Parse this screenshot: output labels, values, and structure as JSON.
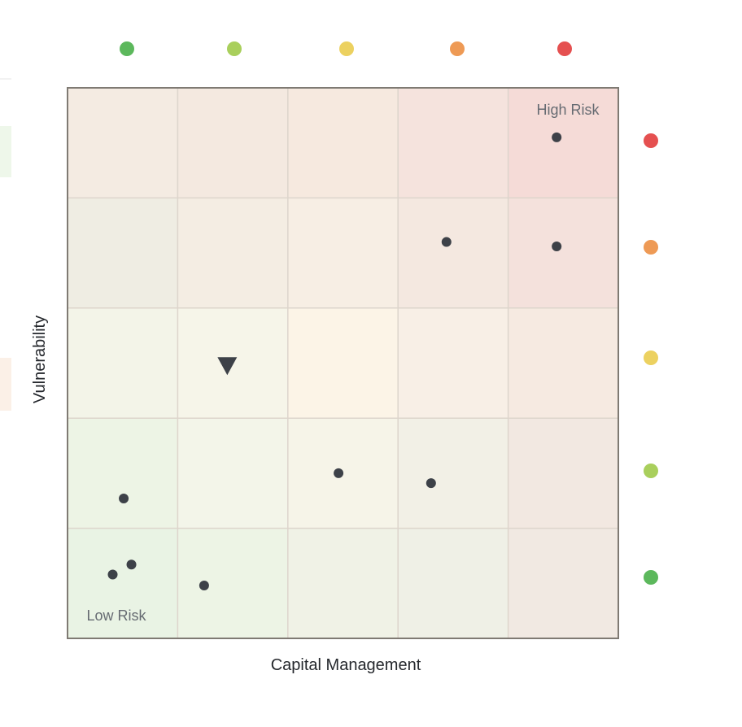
{
  "chart_data": {
    "type": "scatter",
    "title": "",
    "xlabel": "Capital Management",
    "ylabel": "Vulnerability",
    "xlim": [
      0,
      5
    ],
    "ylim": [
      0,
      5
    ],
    "grid": true,
    "columns": 5,
    "rows": 5,
    "corner_labels": {
      "top_right": "High Risk",
      "bottom_left": "Low Risk"
    },
    "column_indicators": [
      "#5cb85c",
      "#a9cf5c",
      "#ecd160",
      "#ee9a55",
      "#e55050"
    ],
    "row_indicators_top_to_bottom": [
      "#e55050",
      "#ee9a55",
      "#ecd160",
      "#a9cf5c",
      "#5cb85c"
    ],
    "points": [
      {
        "x": 4.44,
        "y": 4.55,
        "marker": "circle"
      },
      {
        "x": 3.44,
        "y": 3.6,
        "marker": "circle"
      },
      {
        "x": 4.44,
        "y": 3.56,
        "marker": "circle"
      },
      {
        "x": 1.45,
        "y": 2.48,
        "marker": "triangle-down"
      },
      {
        "x": 2.46,
        "y": 1.5,
        "marker": "circle"
      },
      {
        "x": 3.3,
        "y": 1.41,
        "marker": "circle"
      },
      {
        "x": 0.51,
        "y": 1.27,
        "marker": "circle"
      },
      {
        "x": 0.58,
        "y": 0.67,
        "marker": "circle"
      },
      {
        "x": 0.41,
        "y": 0.58,
        "marker": "circle"
      },
      {
        "x": 1.24,
        "y": 0.48,
        "marker": "circle"
      }
    ]
  },
  "colors": {
    "point": "#3d4148",
    "frame": "#7f7a73",
    "gridline": "#ddd5cc",
    "cells_top_to_bottom": [
      [
        "#f4ebe2",
        "#f4e9e0",
        "#f6e9df",
        "#f5e3dd",
        "#f5dbd7"
      ],
      [
        "#efede3",
        "#f4ede3",
        "#f7eee4",
        "#f4e8e0",
        "#f4e1dc"
      ],
      [
        "#f3f4e8",
        "#f6f5e9",
        "#fcf4e7",
        "#f8efe6",
        "#f6eae1"
      ],
      [
        "#edf4e5",
        "#f3f5e9",
        "#f6f4e8",
        "#f2f0e6",
        "#f2e8e1"
      ],
      [
        "#e9f3e4",
        "#edf4e5",
        "#f0f2e6",
        "#eff0e6",
        "#f1e9e2"
      ]
    ],
    "left_fragments": [
      "#eef7ea",
      "#fbf0e7"
    ]
  }
}
